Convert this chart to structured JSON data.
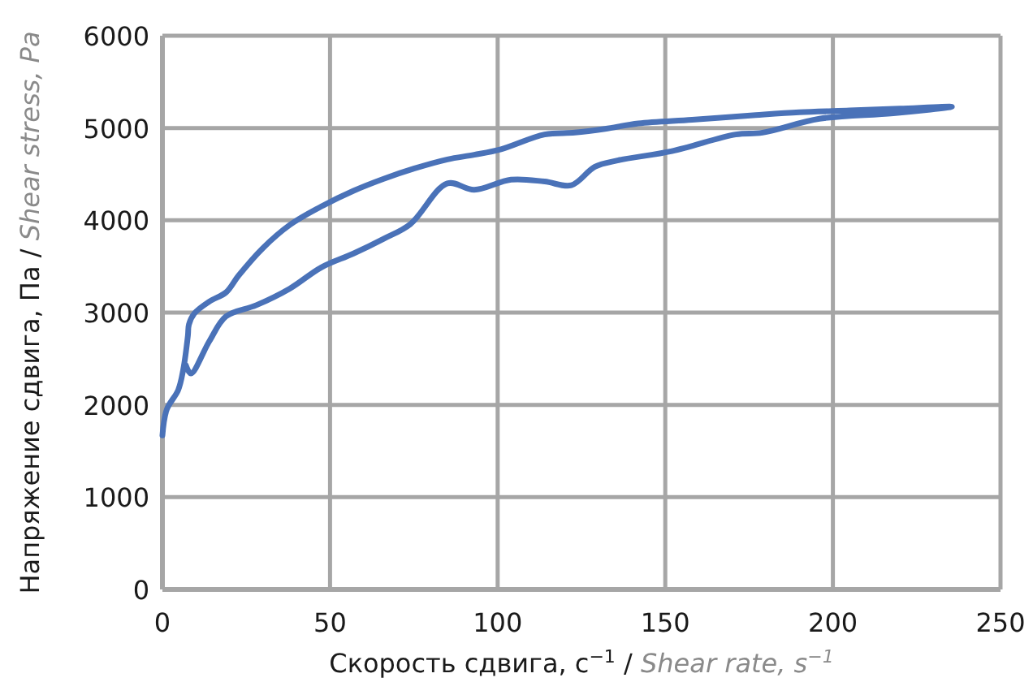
{
  "chart_data": {
    "type": "line",
    "xlabel": "Скорость сдвига, с$^{−1}$ / Shear rate, s$^{−1}$",
    "ylabel": "Напряжение сдвига, Па / Shear stress, Pa",
    "xlim": [
      0,
      250
    ],
    "xticks": [
      0,
      50,
      100,
      150,
      200,
      250
    ],
    "ylim": [
      0,
      6000
    ],
    "yticks": [
      0,
      1000,
      2000,
      3000,
      4000,
      5000,
      6000
    ],
    "grid": true,
    "marker": "none",
    "line_style": "solid",
    "series": [
      {
        "color": "#4a72b8",
        "x": [
          0,
          1.3,
          4.7,
          6.2,
          7.6,
          7.9,
          9.5,
          14,
          19,
          22.7,
          30,
          38,
          47.4,
          57,
          66,
          75,
          85,
          93,
          101,
          114,
          123,
          132,
          142,
          158,
          177,
          190,
          205,
          220,
          235.5,
          218,
          196,
          179,
          171,
          152,
          136,
          129,
          122,
          114,
          104,
          93,
          85,
          74,
          66,
          57,
          47.4,
          38,
          28,
          19,
          14,
          8.5,
          7
        ],
        "values": [
          1670,
          1950,
          2160,
          2380,
          2750,
          2870,
          2990,
          3120,
          3220,
          3400,
          3700,
          3950,
          4150,
          4320,
          4450,
          4560,
          4660,
          4710,
          4770,
          4930,
          4950,
          4990,
          5050,
          5090,
          5140,
          5170,
          5190,
          5210,
          5230,
          5160,
          5100,
          4950,
          4930,
          4750,
          4650,
          4580,
          4380,
          4420,
          4440,
          4330,
          4400,
          3960,
          3800,
          3640,
          3490,
          3260,
          3080,
          2960,
          2690,
          2340,
          2430
        ]
      }
    ]
  }
}
